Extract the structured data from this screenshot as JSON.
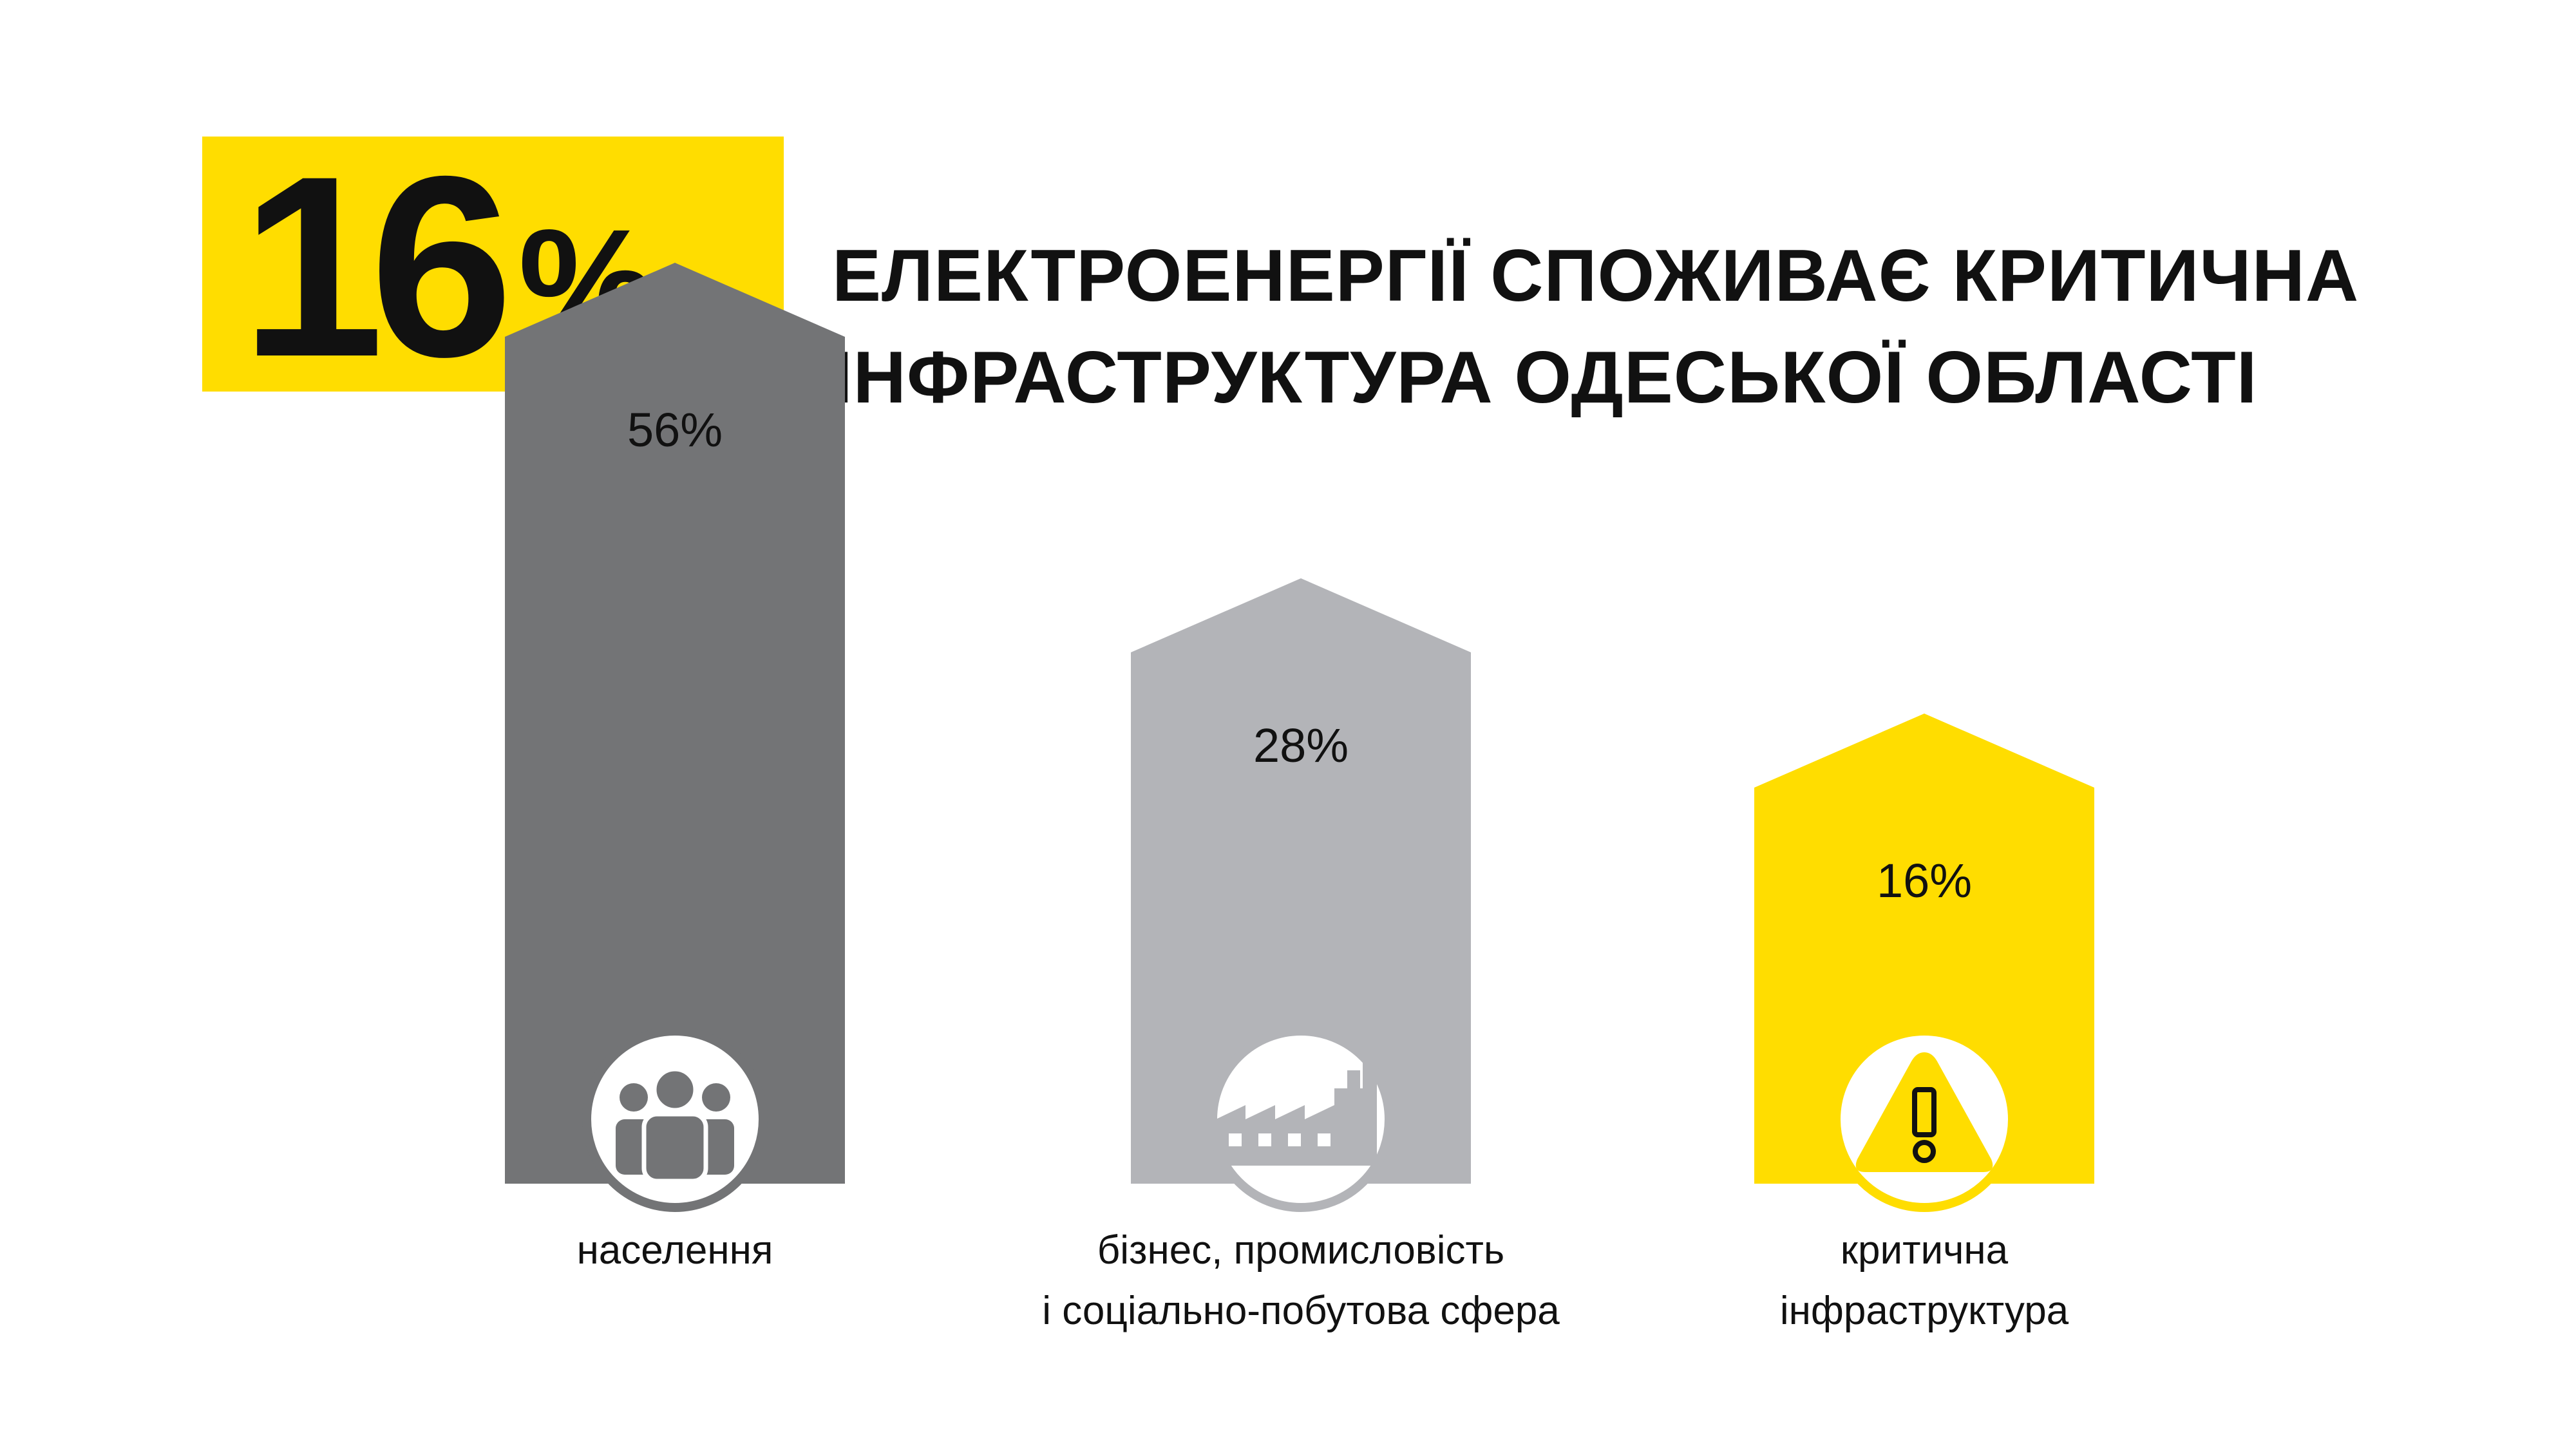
{
  "headline": {
    "number": "16",
    "percent_sign": "%",
    "line1": "ЕЛЕКТРОЕНЕРГІЇ СПОЖИВАЄ КРИТИЧНА",
    "line2": "ІНФРАСТРУКТУРА ОДЕСЬКОЇ ОБЛАСТІ"
  },
  "chart_data": {
    "type": "bar",
    "title": "",
    "categories": [
      [
        "населення"
      ],
      [
        "бізнес, промисловість",
        "і соціально-побутова сфера"
      ],
      [
        "критична",
        "інфраструктура"
      ]
    ],
    "values": [
      56,
      28,
      16
    ],
    "value_labels": [
      "56%",
      "28%",
      "16%"
    ],
    "icons": [
      "people-icon",
      "factory-icon",
      "warning-icon"
    ],
    "colors": [
      "#737476",
      "#B3B4B8",
      "#FFDD00"
    ],
    "ylim": [
      0,
      56
    ],
    "grid": false,
    "legend": "none"
  }
}
